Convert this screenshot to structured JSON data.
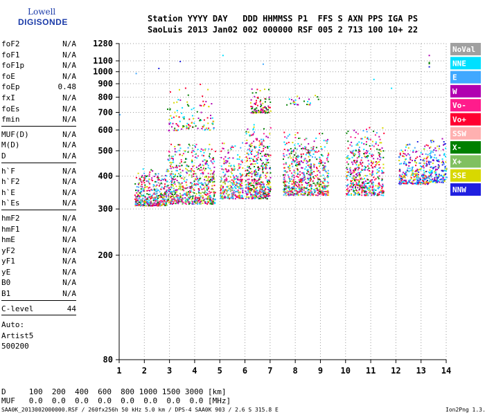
{
  "logo": {
    "line1": "Lowell",
    "line2": "DIGISONDE"
  },
  "header": {
    "line1": "Station YYYY DAY   DDD HHMMSS P1  FFS S AXN PPS IGA PS",
    "line2": "SaoLuis 2013 Jan02 002 000000 RSF 005 2 713 100 10+ 22"
  },
  "params": [
    {
      "key": "foF2",
      "value": "N/A"
    },
    {
      "key": "foF1",
      "value": "N/A"
    },
    {
      "key": "foF1p",
      "value": "N/A"
    },
    {
      "key": "foE",
      "value": "N/A"
    },
    {
      "key": "foEp",
      "value": "0.48"
    },
    {
      "key": "fxI",
      "value": "N/A"
    },
    {
      "key": "foEs",
      "value": "N/A"
    },
    {
      "key": "fmin",
      "value": "N/A"
    },
    {
      "key": "MUF(D)",
      "value": "N/A"
    },
    {
      "key": "M(D)",
      "value": "N/A"
    },
    {
      "key": "D",
      "value": "N/A"
    },
    {
      "key": "h`F",
      "value": "N/A"
    },
    {
      "key": "h`F2",
      "value": "N/A"
    },
    {
      "key": "h`E",
      "value": "N/A"
    },
    {
      "key": "h`Es",
      "value": "N/A"
    },
    {
      "key": "hmF2",
      "value": "N/A"
    },
    {
      "key": "hmF1",
      "value": "N/A"
    },
    {
      "key": "hmE",
      "value": "N/A"
    },
    {
      "key": "yF2",
      "value": "N/A"
    },
    {
      "key": "yF1",
      "value": "N/A"
    },
    {
      "key": "yE",
      "value": "N/A"
    },
    {
      "key": "B0",
      "value": "N/A"
    },
    {
      "key": "B1",
      "value": "N/A"
    },
    {
      "key": "C-level",
      "value": "44"
    }
  ],
  "auto": {
    "label": "Auto:",
    "artist": "Artist5",
    "version": "500200"
  },
  "bottom_table": {
    "d_line": "D     100  200  400  600  800 1000 1500 3000 [km]",
    "muf_line": "MUF   0.0  0.0  0.0  0.0  0.0  0.0  0.0  0.0 [MHz]"
  },
  "footer": {
    "left": "SAA0K_2013002000000.RSF / 260fx256h 50 kHz 5.0 km / DPS-4 SAA0K 903 / 2.6 S 315.8 E",
    "right": "Ion2Png 1.3.17"
  },
  "chart_data": {
    "type": "scatter",
    "title": "",
    "xlabel": "",
    "ylabel": "",
    "xlim": [
      1,
      14
    ],
    "ylim": [
      80,
      1280
    ],
    "y_scale": "log",
    "x_ticks": [
      1,
      2,
      3,
      4,
      5,
      6,
      7,
      8,
      9,
      10,
      11,
      12,
      13,
      14
    ],
    "y_ticks": [
      80,
      200,
      300,
      400,
      500,
      600,
      700,
      800,
      900,
      1000,
      1100,
      1280
    ],
    "grid": "dotted",
    "legend_placement": "right",
    "legend": [
      {
        "name": "NoVal",
        "color": "#a0a0a0"
      },
      {
        "name": "NNE",
        "color": "#00e0ff"
      },
      {
        "name": "E",
        "color": "#40a8ff"
      },
      {
        "name": "W",
        "color": "#b000b0"
      },
      {
        "name": "Vo-",
        "color": "#ff1c8c"
      },
      {
        "name": "Vo+",
        "color": "#ff0030"
      },
      {
        "name": "SSW",
        "color": "#ffb0b0"
      },
      {
        "name": "X-",
        "color": "#008000"
      },
      {
        "name": "X+",
        "color": "#80c060"
      },
      {
        "name": "SSE",
        "color": "#d8d800"
      },
      {
        "name": "NNW",
        "color": "#2020e0"
      }
    ],
    "clusters": [
      {
        "x": [
          1.6,
          2.9
        ],
        "y": [
          310,
          440
        ],
        "count": 420,
        "mix": [
          "Vo+",
          "Vo-",
          "W",
          "E",
          "SSE",
          "NNE",
          "X-",
          "NoVal"
        ]
      },
      {
        "x": [
          2.9,
          4.8
        ],
        "y": [
          315,
          560
        ],
        "count": 650,
        "mix": [
          "SSE",
          "Vo+",
          "W",
          "Vo-",
          "E",
          "X-",
          "NNE",
          "X+"
        ]
      },
      {
        "x": [
          2.9,
          4.8
        ],
        "y": [
          600,
          900
        ],
        "count": 110,
        "mix": [
          "SSE",
          "Vo+",
          "W",
          "X-",
          "NNE"
        ]
      },
      {
        "x": [
          5.0,
          5.9
        ],
        "y": [
          330,
          560
        ],
        "count": 300,
        "mix": [
          "SSE",
          "Vo-",
          "W",
          "Vo+",
          "NNE",
          "E",
          "X+"
        ]
      },
      {
        "x": [
          6.0,
          7.0
        ],
        "y": [
          330,
          640
        ],
        "count": 450,
        "mix": [
          "SSE",
          "Vo+",
          "W",
          "Vo-",
          "NNE",
          "X-",
          "E"
        ]
      },
      {
        "x": [
          6.2,
          7.0
        ],
        "y": [
          700,
          890
        ],
        "count": 90,
        "mix": [
          "SSE",
          "Vo+",
          "W",
          "X-"
        ]
      },
      {
        "x": [
          7.5,
          9.3
        ],
        "y": [
          340,
          620
        ],
        "count": 620,
        "mix": [
          "SSE",
          "Vo+",
          "W",
          "Vo-",
          "NNE",
          "E",
          "X-",
          "X+"
        ]
      },
      {
        "x": [
          7.6,
          9.0
        ],
        "y": [
          750,
          870
        ],
        "count": 25,
        "mix": [
          "SSE",
          "W",
          "X-",
          "NNE"
        ]
      },
      {
        "x": [
          10.0,
          11.5
        ],
        "y": [
          340,
          640
        ],
        "count": 480,
        "mix": [
          "Vo+",
          "W",
          "Vo-",
          "SSE",
          "NNE",
          "E",
          "X-"
        ]
      },
      {
        "x": [
          12.1,
          13.3
        ],
        "y": [
          375,
          560
        ],
        "count": 300,
        "mix": [
          "NNE",
          "E",
          "W",
          "NNW",
          "SSE",
          "Vo+"
        ]
      },
      {
        "x": [
          13.3,
          14.0
        ],
        "y": [
          380,
          590
        ],
        "count": 180,
        "mix": [
          "NNE",
          "W",
          "E",
          "SSE",
          "NNW"
        ]
      }
    ],
    "outliers": [
      {
        "x": 1.65,
        "y": 990,
        "c": "E"
      },
      {
        "x": 2.55,
        "y": 1035,
        "c": "NNW"
      },
      {
        "x": 3.4,
        "y": 1100,
        "c": "NNW"
      },
      {
        "x": 5.1,
        "y": 1160,
        "c": "NNE"
      },
      {
        "x": 6.7,
        "y": 1075,
        "c": "E"
      },
      {
        "x": 11.1,
        "y": 940,
        "c": "NNE"
      },
      {
        "x": 11.8,
        "y": 870,
        "c": "NNE"
      },
      {
        "x": 13.3,
        "y": 1160,
        "c": "W"
      },
      {
        "x": 13.3,
        "y": 1090,
        "c": "X-"
      },
      {
        "x": 13.3,
        "y": 1080,
        "c": "X-"
      },
      {
        "x": 13.3,
        "y": 1050,
        "c": "NNW"
      },
      {
        "x": 1.0,
        "y": 690,
        "c": "E"
      },
      {
        "x": 4.2,
        "y": 900,
        "c": "Vo+"
      },
      {
        "x": 4.5,
        "y": 860,
        "c": "SSE"
      }
    ]
  }
}
